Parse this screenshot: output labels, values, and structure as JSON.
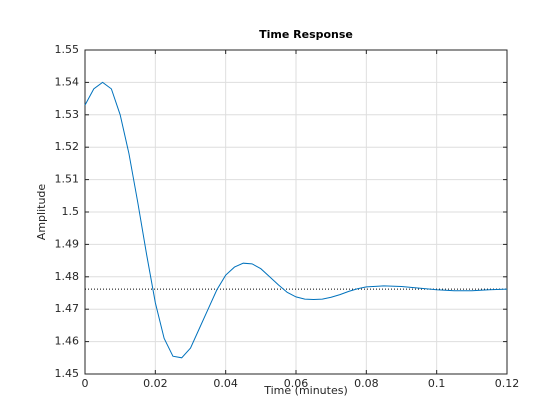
{
  "chart_data": {
    "type": "line",
    "title": "Time Response",
    "x_label": "Time (minutes)",
    "y_label": "Amplitude",
    "x": [
      0,
      0.0025,
      0.005,
      0.0075,
      0.01,
      0.0125,
      0.015,
      0.0175,
      0.02,
      0.0225,
      0.025,
      0.0275,
      0.03,
      0.0325,
      0.035,
      0.0375,
      0.04,
      0.0425,
      0.045,
      0.0475,
      0.05,
      0.0525,
      0.055,
      0.0575,
      0.06,
      0.0625,
      0.065,
      0.0675,
      0.07,
      0.0725,
      0.075,
      0.0775,
      0.08,
      0.085,
      0.09,
      0.095,
      0.1,
      0.105,
      0.11,
      0.115,
      0.12
    ],
    "series": [
      {
        "color": "#0072bd",
        "values": [
          1.533,
          1.538,
          1.54,
          1.538,
          1.53,
          1.518,
          1.503,
          1.487,
          1.472,
          1.461,
          1.4555,
          1.455,
          1.458,
          1.464,
          1.47,
          1.476,
          1.4805,
          1.483,
          1.4842,
          1.484,
          1.4825,
          1.48,
          1.4775,
          1.4752,
          1.4738,
          1.4731,
          1.473,
          1.4731,
          1.4737,
          1.4745,
          1.4755,
          1.4763,
          1.4769,
          1.4772,
          1.477,
          1.4765,
          1.476,
          1.4757,
          1.4757,
          1.476,
          1.4762
        ]
      }
    ],
    "steady_state": 1.4762,
    "xlim": [
      0,
      0.12
    ],
    "xticks": [
      0,
      0.02,
      0.04,
      0.06,
      0.08,
      0.1,
      0.12
    ],
    "ylim": [
      1.45,
      1.55
    ],
    "yticks": [
      1.45,
      1.46,
      1.47,
      1.48,
      1.49,
      1.5,
      1.51,
      1.52,
      1.53,
      1.54,
      1.55
    ],
    "grid": true
  }
}
